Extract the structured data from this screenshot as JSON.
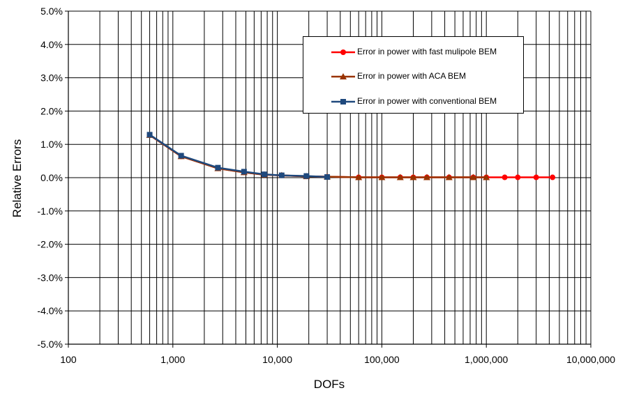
{
  "chart_data": {
    "type": "line",
    "x_scale": "log",
    "xlabel": "DOFs",
    "ylabel": "Relative Errors",
    "xlim": [
      100,
      10000000
    ],
    "ylim": [
      -5.0,
      5.0
    ],
    "x_ticks": [
      {
        "value": 100,
        "label": "100"
      },
      {
        "value": 1000,
        "label": "1,000"
      },
      {
        "value": 10000,
        "label": "10,000"
      },
      {
        "value": 100000,
        "label": "100,000"
      },
      {
        "value": 1000000,
        "label": "1,000,000"
      },
      {
        "value": 10000000,
        "label": "10,000,000"
      }
    ],
    "y_ticks": [
      {
        "value": 5,
        "label": "5.0%"
      },
      {
        "value": 4,
        "label": "4.0%"
      },
      {
        "value": 3,
        "label": "3.0%"
      },
      {
        "value": 2,
        "label": "2.0%"
      },
      {
        "value": 1,
        "label": "1.0%"
      },
      {
        "value": 0,
        "label": "0.0%"
      },
      {
        "value": -1,
        "label": "-1.0%"
      },
      {
        "value": -2,
        "label": "-2.0%"
      },
      {
        "value": -3,
        "label": "-3.0%"
      },
      {
        "value": -4,
        "label": "-4.0%"
      },
      {
        "value": -5,
        "label": "-5.0%"
      }
    ],
    "grid": true,
    "legend_position": "top-right",
    "series": [
      {
        "name": "Error in power with fast mulipole BEM",
        "color": "#ff0000",
        "marker": "circle",
        "x": [
          600,
          1200,
          2700,
          4800,
          7500,
          11000,
          19000,
          30000,
          60000,
          100000,
          150000,
          200000,
          270000,
          440000,
          750000,
          1000000,
          1500000,
          2000000,
          3000000,
          4300000
        ],
        "y": [
          1.28,
          0.64,
          0.28,
          0.16,
          0.09,
          0.07,
          0.04,
          0.03,
          0.01,
          0.01,
          0.01,
          0.01,
          0.01,
          0.01,
          0.01,
          0.01,
          0.01,
          0.01,
          0.01,
          0.01
        ]
      },
      {
        "name": "Error in power with ACA BEM",
        "color": "#993300",
        "marker": "triangle",
        "x": [
          600,
          1200,
          2700,
          4800,
          7500,
          11000,
          19000,
          30000,
          60000,
          100000,
          150000,
          200000,
          270000,
          440000,
          750000,
          1000000
        ],
        "y": [
          1.28,
          0.64,
          0.28,
          0.16,
          0.09,
          0.07,
          0.04,
          0.03,
          0.01,
          0.01,
          0.01,
          0.01,
          0.01,
          0.01,
          0.01,
          0.01
        ]
      },
      {
        "name": "Error in power with conventional BEM",
        "color": "#1f497d",
        "marker": "square",
        "x": [
          600,
          1200,
          2700,
          4800,
          7500,
          11000,
          19000,
          30000
        ],
        "y": [
          1.29,
          0.66,
          0.3,
          0.18,
          0.1,
          0.07,
          0.05,
          0.02
        ]
      }
    ]
  }
}
